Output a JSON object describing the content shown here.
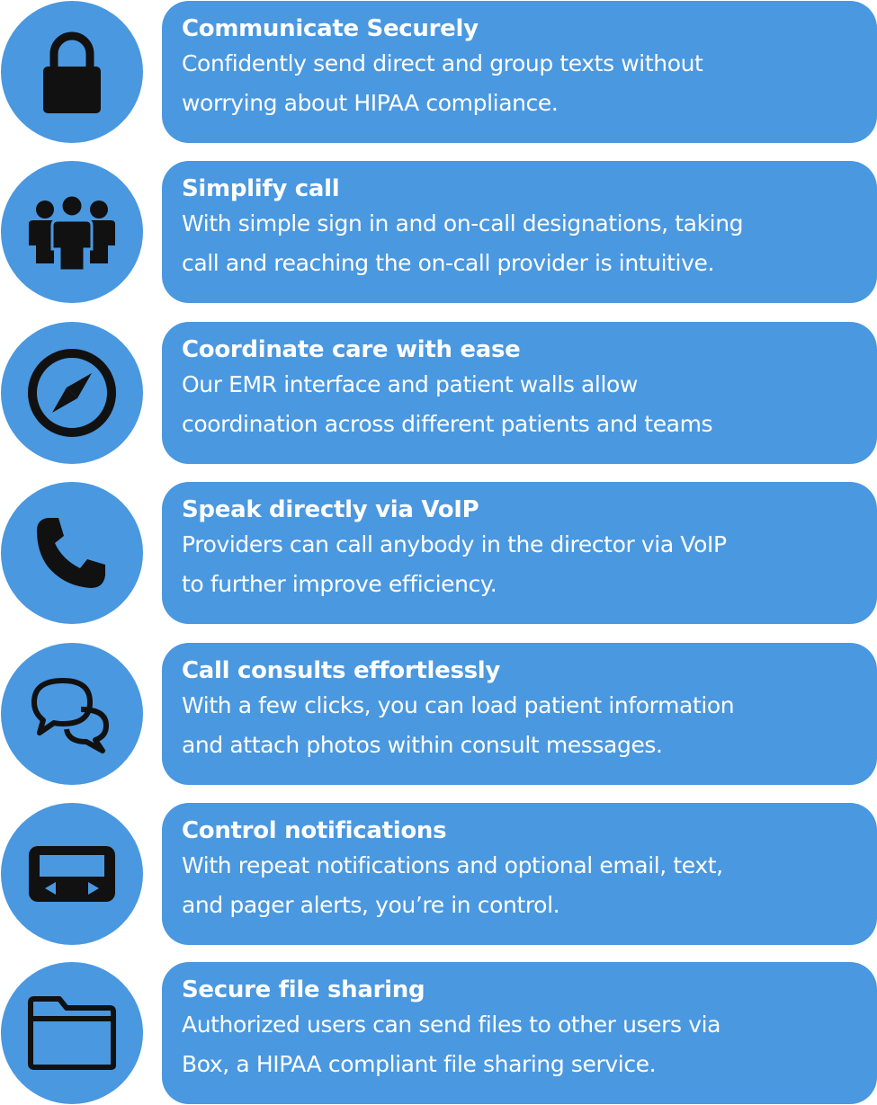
{
  "features": [
    {
      "icon": "lock-icon",
      "title": "Communicate Securely",
      "line1": "Confidently send direct and group texts without",
      "line2": "worrying about HIPAA compliance."
    },
    {
      "icon": "group-icon",
      "title": "Simplify call",
      "line1": "With simple sign in and on-call designations, taking",
      "line2": "call and reaching the on-call provider is intuitive."
    },
    {
      "icon": "compass-icon",
      "title": "Coordinate care with ease",
      "line1": "Our EMR interface and patient walls allow",
      "line2": "coordination across different patients and teams"
    },
    {
      "icon": "phone-icon",
      "title": "Speak directly via VoIP",
      "line1": "Providers can call anybody in the director via VoIP",
      "line2": "to further improve efficiency."
    },
    {
      "icon": "chat-bubbles-icon",
      "title": "Call consults effortlessly",
      "line1": "With a few clicks, you can load patient information",
      "line2": "and attach photos within consult messages."
    },
    {
      "icon": "pager-icon",
      "title": "Control notifications",
      "line1": "With repeat notifications and optional email, text,",
      "line2": "and pager alerts, you’re in control."
    },
    {
      "icon": "folder-icon",
      "title": "Secure file sharing",
      "line1": "Authorized users can send files to other users via",
      "line2": "Box, a HIPAA compliant file sharing service."
    }
  ],
  "colors": {
    "accent": "#4a98e0",
    "icon": "#111111",
    "text": "#ffffff"
  }
}
